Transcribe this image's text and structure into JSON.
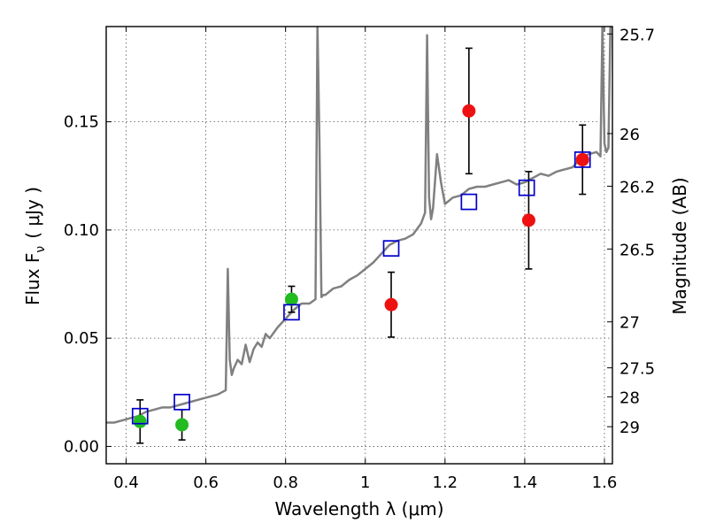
{
  "chart_data": {
    "type": "scatter",
    "xlabel": "Wavelength  λ (μm)",
    "ylabel_left": "Flux  F",
    "ylabel_left_sub": "ν",
    "ylabel_left_unit": "( μJy )",
    "ylabel_right": "Magnitude (AB)",
    "xlim": [
      0.35,
      1.62
    ],
    "ylim": [
      -0.008,
      0.194
    ],
    "x_ticks": [
      {
        "value": 0.4,
        "label": "0.4"
      },
      {
        "value": 0.6,
        "label": "0.6"
      },
      {
        "value": 0.8,
        "label": "0.8"
      },
      {
        "value": 1.0,
        "label": "1"
      },
      {
        "value": 1.2,
        "label": "1.2"
      },
      {
        "value": 1.4,
        "label": "1.4"
      },
      {
        "value": 1.6,
        "label": "1.6"
      }
    ],
    "y_ticks": [
      {
        "value": 0.0,
        "label": "0.00"
      },
      {
        "value": 0.05,
        "label": "0.05"
      },
      {
        "value": 0.1,
        "label": "0.10"
      },
      {
        "value": 0.15,
        "label": "0.15"
      }
    ],
    "right_ticks": [
      {
        "value": 25.7,
        "label": "25.7"
      },
      {
        "value": 26,
        "label": "26"
      },
      {
        "value": 26.2,
        "label": "26.2"
      },
      {
        "value": 26.5,
        "label": "26.5"
      },
      {
        "value": 27,
        "label": "27"
      },
      {
        "value": 27.5,
        "label": "27.5"
      },
      {
        "value": 28,
        "label": "28"
      },
      {
        "value": 29,
        "label": "29"
      }
    ],
    "grid": true,
    "colors": {
      "model": "#808080",
      "green_points": "#22bb22",
      "red_points": "#ee1111",
      "squares": "#0000cc",
      "errorbars": "#000000"
    },
    "series": [
      {
        "kind": "line",
        "x": [
          0.35,
          0.37,
          0.39,
          0.41,
          0.43,
          0.45,
          0.47,
          0.49,
          0.51,
          0.53,
          0.55,
          0.57,
          0.59,
          0.61,
          0.63,
          0.64,
          0.65,
          0.655,
          0.66,
          0.665,
          0.67,
          0.68,
          0.69,
          0.7,
          0.71,
          0.72,
          0.73,
          0.74,
          0.75,
          0.76,
          0.78,
          0.8,
          0.82,
          0.84,
          0.86,
          0.875,
          0.88,
          0.885,
          0.89,
          0.895,
          0.9,
          0.92,
          0.94,
          0.96,
          0.98,
          1.0,
          1.02,
          1.04,
          1.06,
          1.08,
          1.1,
          1.12,
          1.14,
          1.15,
          1.155,
          1.16,
          1.165,
          1.17,
          1.18,
          1.19,
          1.2,
          1.22,
          1.24,
          1.26,
          1.28,
          1.3,
          1.32,
          1.34,
          1.36,
          1.38,
          1.4,
          1.42,
          1.44,
          1.46,
          1.48,
          1.5,
          1.52,
          1.54,
          1.56,
          1.58,
          1.59,
          1.595,
          1.6,
          1.605,
          1.61,
          1.615,
          1.62
        ],
        "y": [
          0.011,
          0.011,
          0.012,
          0.013,
          0.014,
          0.016,
          0.017,
          0.018,
          0.018,
          0.019,
          0.02,
          0.021,
          0.022,
          0.023,
          0.024,
          0.025,
          0.026,
          0.082,
          0.04,
          0.033,
          0.036,
          0.04,
          0.038,
          0.047,
          0.039,
          0.045,
          0.048,
          0.046,
          0.052,
          0.05,
          0.055,
          0.059,
          0.063,
          0.066,
          0.066,
          0.068,
          0.195,
          0.14,
          0.069,
          0.07,
          0.07,
          0.073,
          0.074,
          0.077,
          0.079,
          0.082,
          0.085,
          0.089,
          0.093,
          0.095,
          0.096,
          0.098,
          0.103,
          0.108,
          0.19,
          0.115,
          0.105,
          0.11,
          0.135,
          0.122,
          0.112,
          0.115,
          0.116,
          0.119,
          0.12,
          0.12,
          0.121,
          0.122,
          0.123,
          0.121,
          0.122,
          0.124,
          0.126,
          0.125,
          0.127,
          0.128,
          0.129,
          0.133,
          0.135,
          0.136,
          0.134,
          0.194,
          0.14,
          0.136,
          0.138,
          0.194,
          0.194
        ]
      },
      {
        "kind": "green_circles",
        "points": [
          {
            "x": 0.435,
            "y": 0.0115,
            "err": 0.01
          },
          {
            "x": 0.54,
            "y": 0.01,
            "err": 0.007
          },
          {
            "x": 0.815,
            "y": 0.068,
            "err": 0.006
          }
        ]
      },
      {
        "kind": "red_circles",
        "points": [
          {
            "x": 1.065,
            "y": 0.0655,
            "err": 0.015
          },
          {
            "x": 1.26,
            "y": 0.155,
            "err": 0.029
          },
          {
            "x": 1.41,
            "y": 0.1045,
            "err": 0.0225
          },
          {
            "x": 1.545,
            "y": 0.1325,
            "err": 0.016
          }
        ]
      },
      {
        "kind": "blue_squares",
        "points": [
          {
            "x": 0.435,
            "y": 0.014
          },
          {
            "x": 0.54,
            "y": 0.0205
          },
          {
            "x": 0.815,
            "y": 0.062
          },
          {
            "x": 1.065,
            "y": 0.0915
          },
          {
            "x": 1.26,
            "y": 0.113
          },
          {
            "x": 1.405,
            "y": 0.1195
          },
          {
            "x": 1.545,
            "y": 0.1325
          }
        ]
      }
    ]
  }
}
